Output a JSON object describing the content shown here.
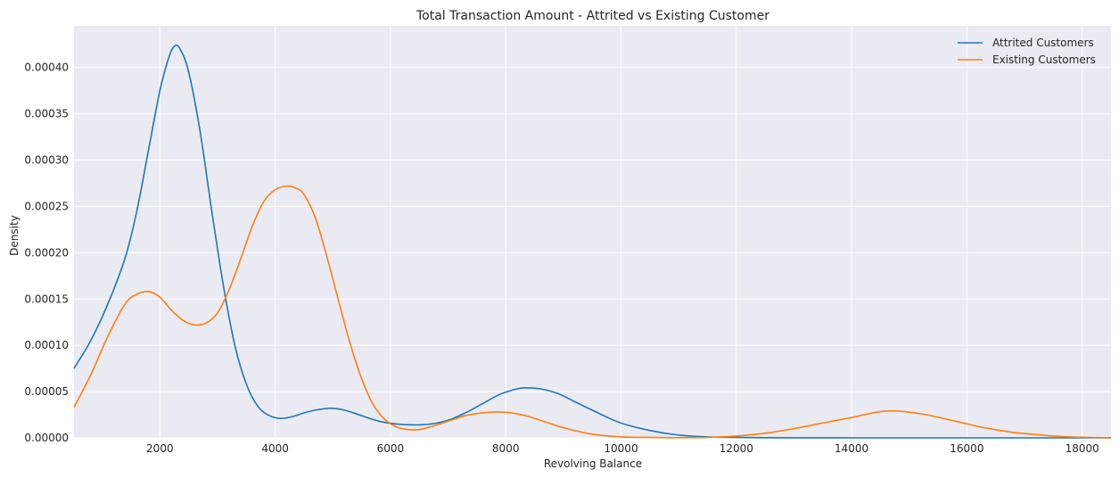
{
  "chart_data": {
    "type": "line",
    "title": "Total Transaction Amount - Attrited vs Existing Customer",
    "xlabel": "Revolving Balance",
    "ylabel": "Density",
    "xlim": [
      510,
      18500
    ],
    "ylim": [
      0,
      0.000445
    ],
    "xticks": [
      2000,
      4000,
      6000,
      8000,
      10000,
      12000,
      14000,
      16000,
      18000
    ],
    "yticks": [
      0,
      5e-05,
      0.0001,
      0.00015,
      0.0002,
      0.00025,
      0.0003,
      0.00035,
      0.0004
    ],
    "ytick_labels": [
      "0.00000",
      "0.00005",
      "0.00010",
      "0.00015",
      "0.00020",
      "0.00025",
      "0.00030",
      "0.00035",
      "0.00040"
    ],
    "grid": true,
    "legend_position": "top-right",
    "series": [
      {
        "name": "Attrited Customers",
        "color": "#1f77b4",
        "x": [
          510,
          800,
          1100,
          1400,
          1600,
          1800,
          2000,
          2150,
          2250,
          2350,
          2500,
          2700,
          2900,
          3100,
          3300,
          3500,
          3700,
          3900,
          4100,
          4300,
          4500,
          4700,
          4950,
          5200,
          5500,
          5800,
          6100,
          6400,
          6700,
          7000,
          7300,
          7600,
          7900,
          8200,
          8350,
          8600,
          8900,
          9200,
          9600,
          10000,
          10500,
          11000,
          11500,
          12000,
          12500,
          13000,
          14000,
          15000,
          16000,
          17000,
          18000,
          18500
        ],
        "y": [
          7.5e-05,
          0.000105,
          0.000145,
          0.000195,
          0.000245,
          0.00031,
          0.000375,
          0.00041,
          0.000423,
          0.00042,
          0.000395,
          0.00033,
          0.000245,
          0.000165,
          0.0001,
          5.8e-05,
          3.4e-05,
          2.4e-05,
          2.1e-05,
          2.3e-05,
          2.7e-05,
          3e-05,
          3.2e-05,
          3e-05,
          2.4e-05,
          1.8e-05,
          1.5e-05,
          1.4e-05,
          1.5e-05,
          1.9e-05,
          2.7e-05,
          3.7e-05,
          4.7e-05,
          5.3e-05,
          5.4e-05,
          5.3e-05,
          4.8e-05,
          3.9e-05,
          2.7e-05,
          1.6e-05,
          8e-06,
          3e-06,
          1e-06,
          5e-07,
          2e-07,
          1e-07,
          0,
          0,
          0,
          0,
          0,
          0
        ]
      },
      {
        "name": "Existing Customers",
        "color": "#ff7f0e",
        "x": [
          510,
          800,
          1100,
          1400,
          1600,
          1800,
          2000,
          2200,
          2400,
          2600,
          2800,
          3000,
          3200,
          3400,
          3600,
          3800,
          4000,
          4200,
          4350,
          4500,
          4700,
          4900,
          5100,
          5300,
          5500,
          5700,
          5900,
          6100,
          6300,
          6500,
          6700,
          6900,
          7100,
          7300,
          7600,
          7850,
          8100,
          8400,
          8700,
          9000,
          9500,
          10000,
          10500,
          11000,
          11500,
          12000,
          12500,
          13000,
          13500,
          14000,
          14600,
          15200,
          15800,
          16300,
          16800,
          17300,
          17800,
          18500
        ],
        "y": [
          3.3e-05,
          6.8e-05,
          0.00011,
          0.000145,
          0.000155,
          0.000158,
          0.000152,
          0.000138,
          0.000127,
          0.000122,
          0.000124,
          0.000135,
          0.00016,
          0.000193,
          0.000228,
          0.000255,
          0.000268,
          0.000272,
          0.00027,
          0.000263,
          0.000237,
          0.000195,
          0.000148,
          0.000102,
          6.4e-05,
          3.6e-05,
          2e-05,
          1.2e-05,
          9e-06,
          9e-06,
          1.2e-05,
          1.6e-05,
          2e-05,
          2.4e-05,
          2.7e-05,
          2.8e-05,
          2.7e-05,
          2.3e-05,
          1.7e-05,
          1.1e-05,
          4e-06,
          1e-06,
          5e-07,
          2e-07,
          5e-07,
          2e-06,
          5e-06,
          1e-05,
          1.6e-05,
          2.2e-05,
          2.9e-05,
          2.6e-05,
          1.8e-05,
          1.1e-05,
          6e-06,
          3e-06,
          1e-06,
          0
        ]
      }
    ]
  }
}
